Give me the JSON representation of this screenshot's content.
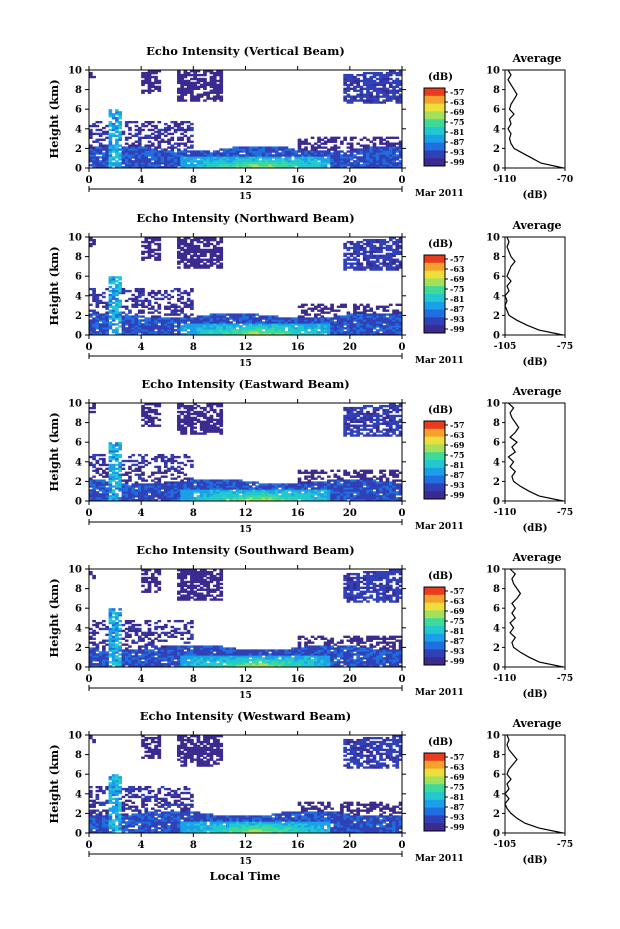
{
  "common": {
    "ylabel": "Height (km)",
    "xlabel": "Local Time",
    "xticks": [
      "0",
      "4",
      "8",
      "12",
      "16",
      "20",
      "0"
    ],
    "yticks": [
      "0",
      "2",
      "4",
      "6",
      "8",
      "10"
    ],
    "date_day": "15",
    "date_label": "Mar 2011",
    "colorbar_unit": "(dB)",
    "colorbar_ticks": [
      "-57",
      "-63",
      "-69",
      "-75",
      "-81",
      "-87",
      "-93",
      "-99"
    ],
    "avg_title": "Average",
    "avg_unit": "(dB)"
  },
  "chart_data": [
    {
      "type": "heatmap",
      "title": "Echo Intensity (Vertical Beam)",
      "xlim": [
        0,
        24
      ],
      "ylim": [
        0,
        10
      ],
      "clim": [
        -99,
        -57
      ],
      "avg_profile": {
        "type": "line",
        "xlim": [
          -110,
          -70
        ],
        "xticks": [
          "-110",
          "-70"
        ],
        "height": [
          0,
          0.5,
          1,
          1.5,
          2,
          2.5,
          3,
          3.5,
          4,
          4.5,
          5,
          5.5,
          6,
          6.5,
          7,
          7.5,
          8,
          8.5,
          9,
          9.5,
          10
        ],
        "db": [
          -71,
          -86,
          -92,
          -98,
          -104,
          -106,
          -107,
          -106,
          -108,
          -106,
          -107,
          -104,
          -107,
          -106,
          -104,
          -102,
          -104,
          -106,
          -108,
          -106,
          -108
        ]
      }
    },
    {
      "type": "heatmap",
      "title": "Echo Intensity (Northward Beam)",
      "xlim": [
        0,
        24
      ],
      "ylim": [
        0,
        10
      ],
      "clim": [
        -99,
        -57
      ],
      "avg_profile": {
        "type": "line",
        "xlim": [
          -105,
          -75
        ],
        "xticks": [
          "-105",
          "-75"
        ],
        "height": [
          0,
          0.5,
          1,
          1.5,
          2,
          2.5,
          3,
          3.5,
          4,
          4.5,
          5,
          5.5,
          6,
          6.5,
          7,
          7.5,
          8,
          8.5,
          9,
          9.5,
          10
        ],
        "db": [
          -76,
          -88,
          -94,
          -99,
          -103,
          -104,
          -105,
          -104,
          -105,
          -103,
          -104,
          -102,
          -104,
          -103,
          -102,
          -100,
          -102,
          -103,
          -104,
          -103,
          -104
        ]
      }
    },
    {
      "type": "heatmap",
      "title": "Echo Intensity (Eastward Beam)",
      "xlim": [
        0,
        24
      ],
      "ylim": [
        0,
        10
      ],
      "clim": [
        -99,
        -57
      ],
      "avg_profile": {
        "type": "line",
        "xlim": [
          -110,
          -75
        ],
        "xticks": [
          "-110",
          "-75"
        ],
        "height": [
          0,
          0.5,
          1,
          1.5,
          2,
          2.5,
          3,
          3.5,
          4,
          4.5,
          5,
          5.5,
          6,
          6.5,
          7,
          7.5,
          8,
          8.5,
          9,
          9.5,
          10
        ],
        "db": [
          -76,
          -90,
          -96,
          -101,
          -105,
          -106,
          -104,
          -107,
          -105,
          -108,
          -104,
          -106,
          -103,
          -107,
          -104,
          -102,
          -104,
          -106,
          -107,
          -105,
          -108
        ]
      }
    },
    {
      "type": "heatmap",
      "title": "Echo Intensity (Southward Beam)",
      "xlim": [
        0,
        24
      ],
      "ylim": [
        0,
        10
      ],
      "clim": [
        -99,
        -57
      ],
      "avg_profile": {
        "type": "line",
        "xlim": [
          -110,
          -75
        ],
        "xticks": [
          "-110",
          "-75"
        ],
        "height": [
          0,
          0.5,
          1,
          1.5,
          2,
          2.5,
          3,
          3.5,
          4,
          4.5,
          5,
          5.5,
          6,
          6.5,
          7,
          7.5,
          8,
          8.5,
          9,
          9.5,
          10
        ],
        "db": [
          -76,
          -90,
          -96,
          -101,
          -105,
          -106,
          -104,
          -107,
          -105,
          -107,
          -104,
          -106,
          -104,
          -106,
          -103,
          -101,
          -103,
          -105,
          -106,
          -104,
          -107
        ]
      }
    },
    {
      "type": "heatmap",
      "title": "Echo Intensity (Westward Beam)",
      "xlim": [
        0,
        24
      ],
      "ylim": [
        0,
        10
      ],
      "clim": [
        -99,
        -57
      ],
      "avg_profile": {
        "type": "line",
        "xlim": [
          -105,
          -75
        ],
        "xticks": [
          "-105",
          "-75"
        ],
        "height": [
          0,
          0.5,
          1,
          1.5,
          2,
          2.5,
          3,
          3.5,
          4,
          4.5,
          5,
          5.5,
          6,
          6.5,
          7,
          7.5,
          8,
          8.5,
          9,
          9.5,
          10
        ],
        "db": [
          -76,
          -88,
          -95,
          -99,
          -102,
          -104,
          -105,
          -103,
          -105,
          -103,
          -104,
          -102,
          -104,
          -103,
          -101,
          -99,
          -101,
          -103,
          -104,
          -103,
          -104
        ]
      }
    }
  ]
}
